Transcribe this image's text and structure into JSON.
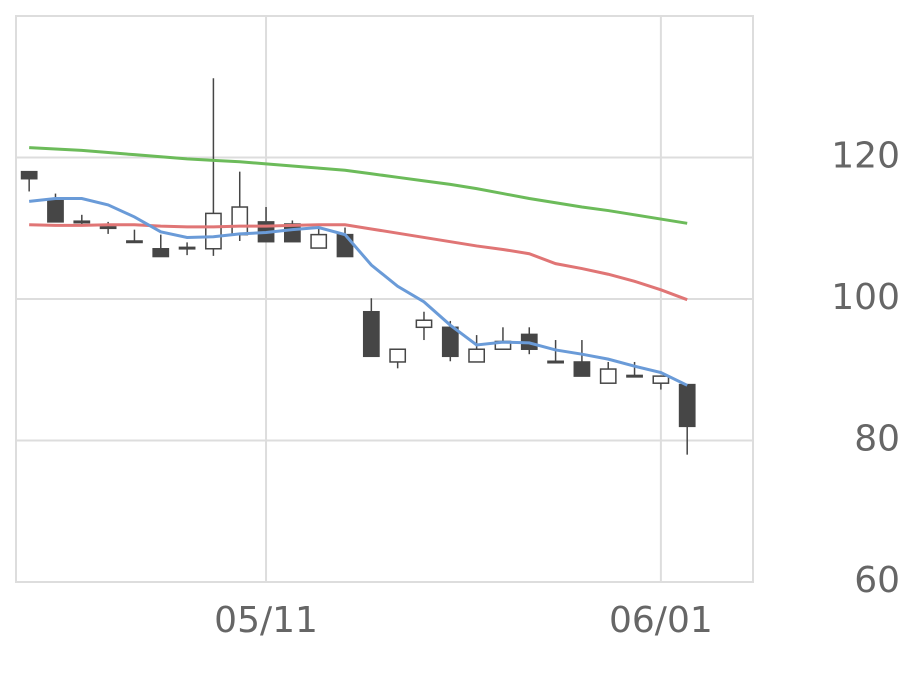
{
  "chart_data": {
    "type": "candlestick",
    "categories": [
      null,
      null,
      null,
      null,
      null,
      null,
      null,
      null,
      null,
      "05/11",
      null,
      null,
      null,
      null,
      null,
      null,
      null,
      null,
      null,
      null,
      null,
      null,
      null,
      null,
      "06/01",
      null
    ],
    "xlim": [
      -0.5,
      27.5
    ],
    "open": [
      118.0,
      113.9,
      111.0,
      110.2,
      108.2,
      107.1,
      107.3,
      107.1,
      109.1,
      110.9,
      110.6,
      107.2,
      109.1,
      98.2,
      91.1,
      96.0,
      96.0,
      91.1,
      92.9,
      95.0,
      91.2,
      91.1,
      88.1,
      89.2,
      88.1,
      87.9
    ],
    "high": [
      118.0,
      114.9,
      111.9,
      110.9,
      109.8,
      109.1,
      108.0,
      131.2,
      118.0,
      113.0,
      111.1,
      110.1,
      110.1,
      100.1,
      92.9,
      98.2,
      96.9,
      94.9,
      96.0,
      96.0,
      94.2,
      94.2,
      91.1,
      91.1,
      89.1,
      87.9
    ],
    "low": [
      115.2,
      110.9,
      110.5,
      109.2,
      108.0,
      106.0,
      106.2,
      106.1,
      108.2,
      108.1,
      108.1,
      107.2,
      106.0,
      91.9,
      90.2,
      94.2,
      91.2,
      91.1,
      92.9,
      92.2,
      91.1,
      89.1,
      88.1,
      89.1,
      87.2,
      78.0
    ],
    "close": [
      117.0,
      110.9,
      110.8,
      110.0,
      108.0,
      106.0,
      107.1,
      112.1,
      113.0,
      108.1,
      108.1,
      109.1,
      106.0,
      91.9,
      92.9,
      97.0,
      91.9,
      92.9,
      94.0,
      92.9,
      91.1,
      89.1,
      90.1,
      89.1,
      89.1,
      82.0
    ],
    "up_color": "#ffffff",
    "down_color": "#464646",
    "wick_color": "#464646",
    "lines": [
      {
        "color": "#6cbb5a",
        "values": [
          121.4,
          121.2,
          121.0,
          120.7,
          120.4,
          120.1,
          119.8,
          119.6,
          119.4,
          119.1,
          118.8,
          118.5,
          118.2,
          117.7,
          117.2,
          116.7,
          116.2,
          115.6,
          114.9,
          114.2,
          113.6,
          113.0,
          112.5,
          111.9,
          111.3,
          110.7
        ]
      },
      {
        "color": "#e07575",
        "values": [
          110.5,
          110.4,
          110.4,
          110.5,
          110.5,
          110.3,
          110.2,
          110.2,
          110.3,
          110.3,
          110.4,
          110.5,
          110.5,
          109.9,
          109.3,
          108.7,
          108.1,
          107.5,
          107.0,
          106.4,
          105.0,
          104.3,
          103.5,
          102.5,
          101.3,
          99.9
        ]
      },
      {
        "color": "#6a9bd8",
        "values": [
          113.8,
          114.2,
          114.2,
          113.3,
          111.6,
          109.5,
          108.7,
          108.8,
          109.2,
          109.4,
          109.8,
          110.1,
          109.1,
          104.8,
          101.8,
          99.6,
          96.3,
          93.5,
          93.9,
          93.8,
          92.8,
          92.2,
          91.5,
          90.5,
          89.6,
          87.8
        ]
      }
    ],
    "ylim": [
      60,
      140
    ],
    "yticks": [
      60,
      80,
      100,
      120
    ],
    "y_axis_side": "right",
    "grid": true
  }
}
